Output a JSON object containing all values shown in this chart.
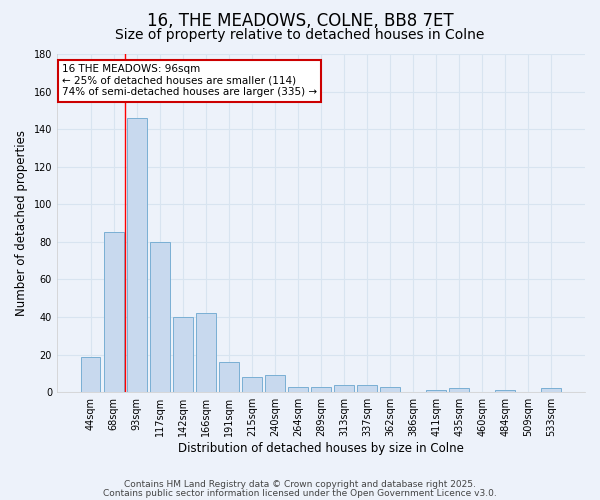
{
  "title_line1": "16, THE MEADOWS, COLNE, BB8 7ET",
  "title_line2": "Size of property relative to detached houses in Colne",
  "xlabel": "Distribution of detached houses by size in Colne",
  "ylabel": "Number of detached properties",
  "categories": [
    "44sqm",
    "68sqm",
    "93sqm",
    "117sqm",
    "142sqm",
    "166sqm",
    "191sqm",
    "215sqm",
    "240sqm",
    "264sqm",
    "289sqm",
    "313sqm",
    "337sqm",
    "362sqm",
    "386sqm",
    "411sqm",
    "435sqm",
    "460sqm",
    "484sqm",
    "509sqm",
    "533sqm"
  ],
  "values": [
    19,
    85,
    146,
    80,
    40,
    42,
    16,
    8,
    9,
    3,
    3,
    4,
    4,
    3,
    0,
    1,
    2,
    0,
    1,
    0,
    2
  ],
  "bar_color": "#c8d9ee",
  "bar_edge_color": "#7aafd4",
  "grid_color": "#d8e4f0",
  "background_color": "#edf2fa",
  "red_line_x": 1.5,
  "annotation_line1": "16 THE MEADOWS: 96sqm",
  "annotation_line2": "← 25% of detached houses are smaller (114)",
  "annotation_line3": "74% of semi-detached houses are larger (335) →",
  "annotation_box_color": "white",
  "annotation_box_edge": "#cc0000",
  "ylim": [
    0,
    180
  ],
  "yticks": [
    0,
    20,
    40,
    60,
    80,
    100,
    120,
    140,
    160,
    180
  ],
  "footnote1": "Contains HM Land Registry data © Crown copyright and database right 2025.",
  "footnote2": "Contains public sector information licensed under the Open Government Licence v3.0.",
  "title_fontsize": 12,
  "subtitle_fontsize": 10,
  "label_fontsize": 8.5,
  "tick_fontsize": 7,
  "annotation_fontsize": 7.5,
  "footnote_fontsize": 6.5
}
